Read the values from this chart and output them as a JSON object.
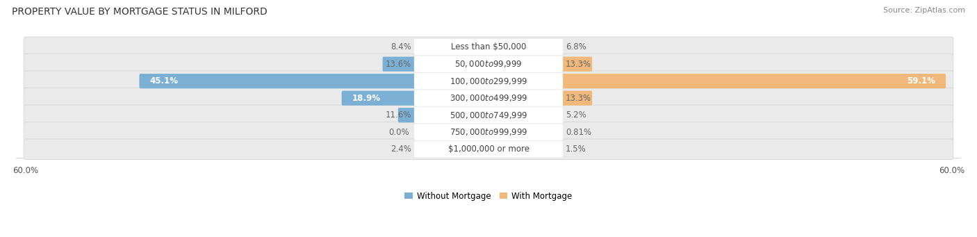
{
  "title": "PROPERTY VALUE BY MORTGAGE STATUS IN MILFORD",
  "source": "Source: ZipAtlas.com",
  "categories": [
    "Less than $50,000",
    "$50,000 to $99,999",
    "$100,000 to $299,999",
    "$300,000 to $499,999",
    "$500,000 to $749,999",
    "$750,000 to $999,999",
    "$1,000,000 or more"
  ],
  "without_mortgage": [
    8.4,
    13.6,
    45.1,
    18.9,
    11.6,
    0.0,
    2.4
  ],
  "with_mortgage": [
    6.8,
    13.3,
    59.1,
    13.3,
    5.2,
    0.81,
    1.5
  ],
  "max_val": 60.0,
  "color_without": "#7bafd4",
  "color_with": "#f0b87a",
  "bg_row_color": "#eaeaea",
  "bg_row_outline": "#d5d5d5",
  "label_pill_color": "#ffffff",
  "legend_without": "Without Mortgage",
  "legend_with": "With Mortgage",
  "title_fontsize": 10,
  "source_fontsize": 8,
  "label_fontsize": 8.5,
  "category_fontsize": 8.5,
  "axis_label_fontsize": 8.5,
  "inside_label_threshold": 15.0
}
